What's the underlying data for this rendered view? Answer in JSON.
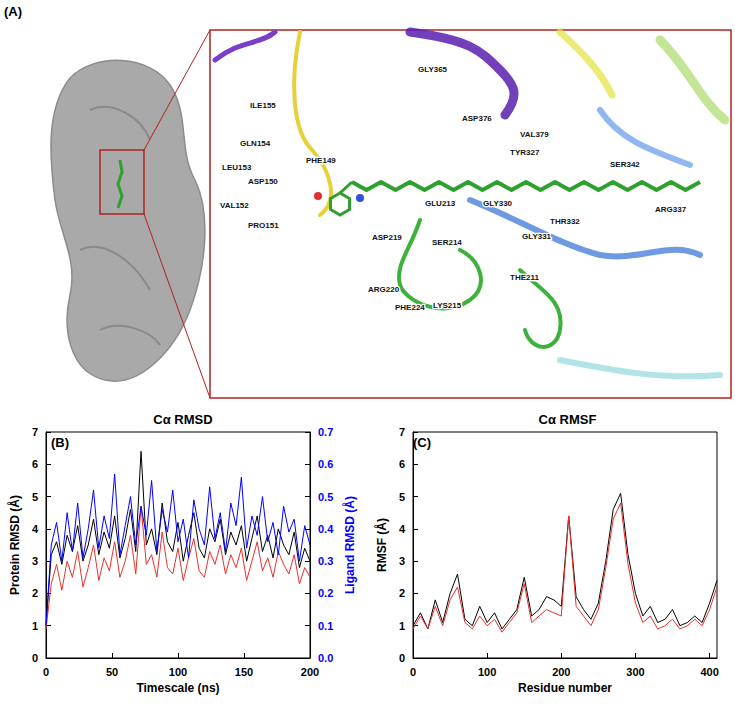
{
  "panel_a": {
    "label": "(A)",
    "residues": [
      "GLY365",
      "ILE155",
      "ASP376",
      "VAL379",
      "GLN154",
      "PHE149",
      "TYR327",
      "LEU153",
      "ASP150",
      "SER342",
      "VAL152",
      "PRO151",
      "GLU213",
      "GLY330",
      "ARG337",
      "THR332",
      "GLY331",
      "ASP219",
      "SER214",
      "THE211",
      "ARG220",
      "PHE224",
      "LYS215"
    ]
  },
  "chart_data": [
    {
      "type": "line",
      "title": "Cα RMSD",
      "annotations": [
        "(B)"
      ],
      "x_label": "Timescale (ns)",
      "y_label": "Protein RMSD (Å)",
      "y2_label": "Ligand RMSD (Å)",
      "x": [
        0,
        4,
        8,
        12,
        16,
        20,
        24,
        28,
        32,
        36,
        40,
        44,
        48,
        52,
        56,
        60,
        64,
        68,
        72,
        76,
        80,
        84,
        88,
        92,
        96,
        100,
        104,
        108,
        112,
        116,
        120,
        124,
        128,
        132,
        136,
        140,
        144,
        148,
        152,
        156,
        160,
        164,
        168,
        172,
        176,
        180,
        184,
        188,
        192,
        196,
        200
      ],
      "xlim": [
        0,
        200
      ],
      "xticks": [
        0,
        50,
        100,
        150,
        200
      ],
      "ylim": [
        0,
        7
      ],
      "yticks": [
        0,
        1,
        2,
        3,
        4,
        5,
        6,
        7
      ],
      "y2lim": [
        0,
        0.7
      ],
      "y2ticks": [
        {
          "value": 0,
          "label": "0.0"
        },
        0.1,
        0.2,
        0.3,
        0.4,
        0.5,
        0.6,
        0.7
      ],
      "grid": false,
      "series": [
        {
          "color": "#000000",
          "values": [
            1.0,
            3.2,
            3.6,
            2.9,
            3.8,
            3.3,
            4.1,
            3.0,
            3.5,
            4.3,
            3.2,
            3.9,
            3.4,
            4.4,
            3.1,
            3.7,
            4.6,
            3.3,
            6.4,
            3.5,
            4.0,
            3.2,
            4.8,
            3.6,
            3.3,
            4.2,
            3.0,
            3.8,
            4.5,
            3.4,
            3.1,
            4.0,
            3.6,
            4.3,
            3.2,
            3.9,
            3.5,
            4.1,
            3.0,
            3.7,
            4.4,
            3.3,
            3.8,
            3.1,
            4.0,
            3.5,
            3.2,
            3.9,
            2.8,
            3.4,
            3.0
          ]
        },
        {
          "color": "#e8312b",
          "values": [
            0.9,
            2.3,
            2.9,
            2.1,
            3.0,
            2.5,
            3.3,
            2.2,
            2.8,
            3.5,
            2.4,
            3.1,
            2.7,
            3.6,
            2.5,
            3.0,
            3.8,
            2.6,
            4.7,
            2.9,
            3.2,
            2.5,
            3.9,
            2.8,
            2.6,
            3.4,
            2.4,
            3.1,
            3.7,
            2.7,
            2.5,
            3.3,
            2.9,
            3.5,
            2.6,
            3.2,
            2.8,
            3.4,
            2.4,
            3.0,
            3.6,
            2.7,
            3.1,
            2.5,
            3.3,
            2.9,
            2.6,
            3.2,
            2.3,
            2.8,
            2.5
          ]
        },
        {
          "color": "#0000ff",
          "axis": "y2",
          "values": [
            0.1,
            0.35,
            0.42,
            0.3,
            0.45,
            0.33,
            0.48,
            0.31,
            0.4,
            0.52,
            0.34,
            0.44,
            0.37,
            0.57,
            0.32,
            0.41,
            0.5,
            0.35,
            0.47,
            0.38,
            0.55,
            0.33,
            0.46,
            0.39,
            0.52,
            0.36,
            0.43,
            0.31,
            0.49,
            0.4,
            0.35,
            0.53,
            0.37,
            0.45,
            0.33,
            0.48,
            0.41,
            0.56,
            0.34,
            0.44,
            0.38,
            0.5,
            0.36,
            0.42,
            0.32,
            0.47,
            0.39,
            0.43,
            0.3,
            0.41,
            0.35
          ]
        }
      ]
    },
    {
      "type": "line",
      "title": "Cα RMSF",
      "annotations": [
        "(C)"
      ],
      "x_label": "Residue number",
      "y_label": "RMSF (Å)",
      "x": [
        0,
        10,
        20,
        30,
        40,
        50,
        60,
        70,
        80,
        90,
        100,
        110,
        120,
        130,
        140,
        150,
        160,
        170,
        180,
        190,
        200,
        210,
        220,
        230,
        240,
        250,
        260,
        270,
        280,
        290,
        300,
        310,
        320,
        330,
        340,
        350,
        360,
        370,
        380,
        390,
        400,
        410
      ],
      "xlim": [
        0,
        410
      ],
      "xticks": [
        0,
        100,
        200,
        300,
        400
      ],
      "ylim": [
        0,
        7
      ],
      "yticks": [
        0,
        1,
        2,
        3,
        4,
        5,
        6,
        7
      ],
      "grid": false,
      "series": [
        {
          "color": "#000000",
          "values": [
            1.0,
            1.4,
            0.9,
            1.8,
            1.1,
            2.0,
            2.6,
            1.2,
            1.0,
            1.6,
            1.1,
            1.4,
            0.9,
            1.2,
            1.5,
            2.5,
            1.3,
            1.5,
            1.9,
            1.8,
            1.6,
            4.4,
            1.9,
            1.5,
            1.2,
            1.7,
            3.0,
            4.6,
            5.1,
            3.2,
            2.0,
            1.3,
            1.6,
            1.1,
            1.2,
            1.5,
            1.0,
            1.1,
            1.3,
            1.1,
            1.7,
            2.4
          ]
        },
        {
          "color": "#e8312b",
          "values": [
            0.9,
            1.3,
            0.9,
            1.6,
            1.0,
            1.8,
            2.2,
            1.1,
            0.9,
            1.3,
            1.0,
            1.2,
            0.8,
            1.1,
            1.4,
            2.3,
            1.1,
            1.3,
            1.5,
            1.4,
            1.3,
            4.4,
            1.6,
            1.3,
            1.0,
            1.5,
            2.8,
            4.3,
            4.8,
            2.9,
            1.7,
            1.1,
            1.3,
            0.9,
            1.0,
            1.2,
            0.9,
            1.0,
            1.2,
            1.0,
            1.5,
            2.2
          ]
        }
      ]
    }
  ]
}
